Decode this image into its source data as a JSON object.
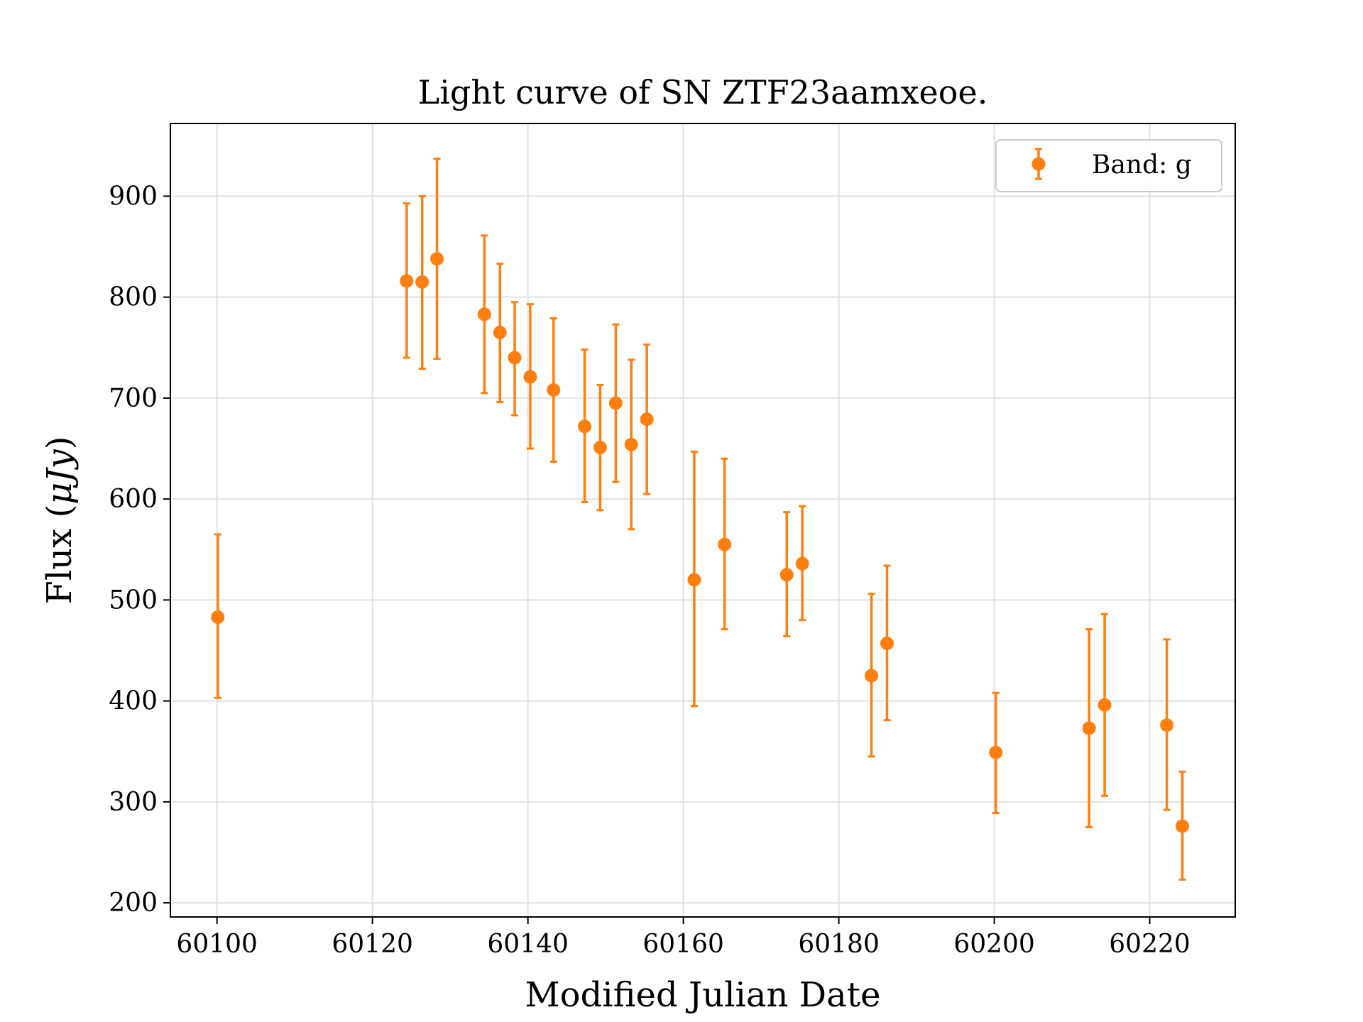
{
  "chart_data": {
    "type": "scatter",
    "title": "Light curve of SN ZTF23aamxeoe.",
    "xlabel": "Modified Julian Date",
    "ylabel": "Flux (μJy)",
    "ylabel_prefix": "Flux (",
    "ylabel_math": "μJy",
    "ylabel_suffix": ")",
    "xlim": [
      60094,
      60231
    ],
    "ylim": [
      186,
      972
    ],
    "grid": true,
    "legend_position": "top-right",
    "xticks": [
      60100,
      60120,
      60140,
      60160,
      60180,
      60200,
      60220
    ],
    "xtick_labels": [
      "60100",
      "60120",
      "60140",
      "60160",
      "60180",
      "60200",
      "60220"
    ],
    "yticks": [
      200,
      300,
      400,
      500,
      600,
      700,
      800,
      900
    ],
    "ytick_labels": [
      "200",
      "300",
      "400",
      "500",
      "600",
      "700",
      "800",
      "900"
    ],
    "series": [
      {
        "name": "Band: g",
        "color": "#ff7f0e",
        "points": [
          {
            "x": 60100.1,
            "y": 483,
            "err_low": 403,
            "err_high": 565
          },
          {
            "x": 60124.4,
            "y": 816,
            "err_low": 740,
            "err_high": 893
          },
          {
            "x": 60126.4,
            "y": 815,
            "err_low": 729,
            "err_high": 900
          },
          {
            "x": 60128.3,
            "y": 838,
            "err_low": 739,
            "err_high": 937
          },
          {
            "x": 60134.4,
            "y": 783,
            "err_low": 705,
            "err_high": 861
          },
          {
            "x": 60136.4,
            "y": 765,
            "err_low": 696,
            "err_high": 833
          },
          {
            "x": 60138.3,
            "y": 740,
            "err_low": 683,
            "err_high": 795
          },
          {
            "x": 60140.3,
            "y": 721,
            "err_low": 650,
            "err_high": 793
          },
          {
            "x": 60143.3,
            "y": 708,
            "err_low": 637,
            "err_high": 779
          },
          {
            "x": 60147.3,
            "y": 672,
            "err_low": 597,
            "err_high": 748
          },
          {
            "x": 60149.3,
            "y": 651,
            "err_low": 589,
            "err_high": 713
          },
          {
            "x": 60151.3,
            "y": 695,
            "err_low": 617,
            "err_high": 773
          },
          {
            "x": 60153.3,
            "y": 654,
            "err_low": 570,
            "err_high": 738
          },
          {
            "x": 60155.3,
            "y": 679,
            "err_low": 605,
            "err_high": 753
          },
          {
            "x": 60161.4,
            "y": 520,
            "err_low": 395,
            "err_high": 647
          },
          {
            "x": 60165.3,
            "y": 555,
            "err_low": 471,
            "err_high": 640
          },
          {
            "x": 60173.3,
            "y": 525,
            "err_low": 464,
            "err_high": 587
          },
          {
            "x": 60175.3,
            "y": 536,
            "err_low": 480,
            "err_high": 593
          },
          {
            "x": 60184.2,
            "y": 425,
            "err_low": 345,
            "err_high": 506
          },
          {
            "x": 60186.2,
            "y": 457,
            "err_low": 381,
            "err_high": 534
          },
          {
            "x": 60200.2,
            "y": 349,
            "err_low": 289,
            "err_high": 408
          },
          {
            "x": 60212.2,
            "y": 373,
            "err_low": 275,
            "err_high": 471
          },
          {
            "x": 60214.2,
            "y": 396,
            "err_low": 306,
            "err_high": 486
          },
          {
            "x": 60222.2,
            "y": 376,
            "err_low": 292,
            "err_high": 461
          },
          {
            "x": 60224.2,
            "y": 276,
            "err_low": 223,
            "err_high": 330
          }
        ]
      }
    ]
  },
  "style": {
    "axes_color": "#000000",
    "grid_color": "#e0e0e0",
    "legend_border_color": "#cccccc"
  }
}
